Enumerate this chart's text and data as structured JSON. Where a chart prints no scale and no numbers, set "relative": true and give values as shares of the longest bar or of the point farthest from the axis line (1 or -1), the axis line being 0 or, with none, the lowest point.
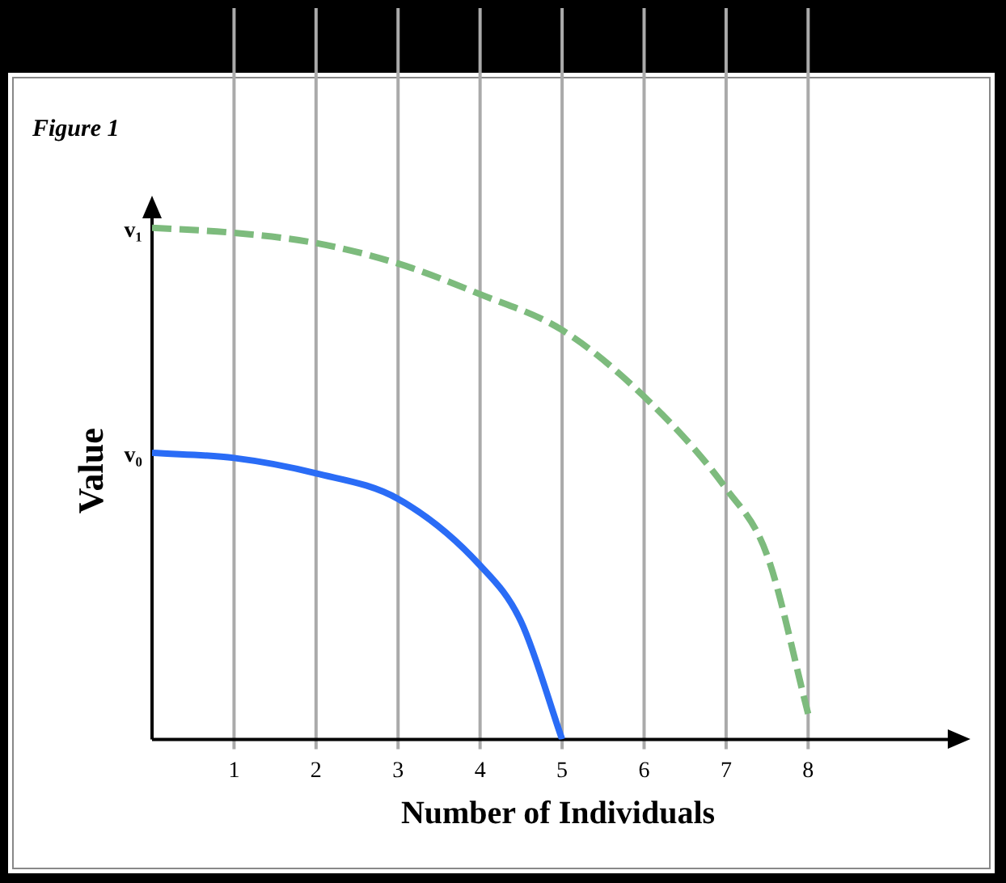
{
  "chart_data": {
    "type": "line",
    "title": "Figure 1",
    "xlabel": "Number of Individuals",
    "ylabel": "Value",
    "relative": true,
    "xlim": [
      0,
      9.9
    ],
    "xticks": [
      1,
      2,
      3,
      4,
      5,
      6,
      7,
      8
    ],
    "grid": "x",
    "legend": false,
    "marker": "none",
    "series": [
      {
        "color": "#7dbb7d",
        "line_style": "dashed",
        "x": [
          0,
          1,
          2,
          3,
          4,
          5,
          6,
          7,
          7.5,
          8
        ],
        "values": [
          1,
          0.99,
          0.97,
          0.93,
          0.87,
          0.8,
          0.67,
          0.49,
          0.36,
          0.05
        ]
      },
      {
        "color": "#2a6cf6",
        "line_style": "solid",
        "x": [
          0,
          1,
          2,
          3,
          4,
          4.5,
          5
        ],
        "values": [
          0.56,
          0.55,
          0.52,
          0.47,
          0.34,
          0.23,
          0
        ]
      }
    ],
    "annotations": [
      {
        "text": "v₁",
        "x": 0,
        "y": 1
      },
      {
        "text": "v₀",
        "x": 0,
        "y": 0.56
      }
    ]
  }
}
